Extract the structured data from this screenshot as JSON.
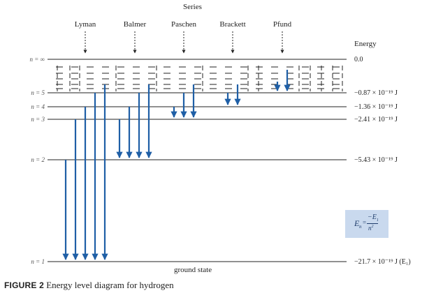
{
  "diagram": {
    "series_heading": "Series",
    "series_names": [
      "Lyman",
      "Balmer",
      "Paschen",
      "Brackett",
      "Pfund"
    ],
    "energy_heading": "Energy",
    "levels": [
      {
        "label": "n = ∞",
        "energy": "0.0"
      },
      {
        "label": "n = 5",
        "energy": "−0.87 × 10⁻¹⁹ J"
      },
      {
        "label": "n = 4",
        "energy": "−1.36 × 10⁻¹⁹ J"
      },
      {
        "label": "n = 3",
        "energy": "−2.41 × 10⁻¹⁹ J"
      },
      {
        "label": "n = 2",
        "energy": "−5.43 × 10⁻¹⁹ J"
      },
      {
        "label": "n = 1",
        "energy": "−21.7 × 10⁻¹⁹ J (E₁)"
      }
    ],
    "ground_state": "ground state",
    "formula": {
      "lhs": "E",
      "lhs_sub": "n",
      "equals": "=",
      "numerator": "−E",
      "numerator_sub": "1",
      "denominator": "n",
      "denominator_sup": "2"
    }
  },
  "caption": {
    "figure": "FIGURE 2",
    "text": "Energy level diagram for hydrogen"
  },
  "colors": {
    "arrow": "#1f5fa6",
    "line": "#222222",
    "box": "#c9d9ee"
  }
}
